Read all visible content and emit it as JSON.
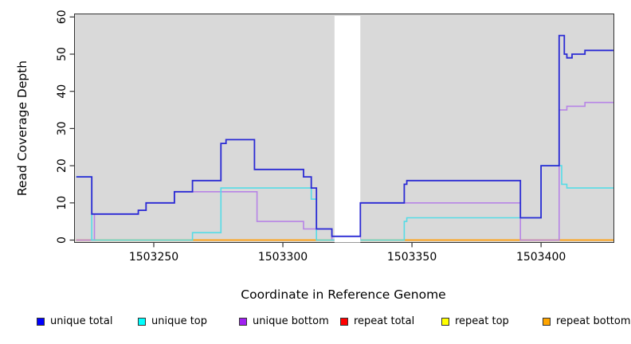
{
  "chart_data": {
    "type": "line",
    "subtype": "step",
    "title": "",
    "xlabel": "Coordinate in Reference Genome",
    "ylabel": "Read Coverage Depth",
    "xlim": [
      1503219,
      1503428
    ],
    "ylim": [
      0,
      60
    ],
    "x_ticks": [
      1503250,
      1503300,
      1503350,
      1503400
    ],
    "y_ticks": [
      0,
      10,
      20,
      30,
      40,
      50,
      60
    ],
    "grid": false,
    "background_color": "#d9d9d9",
    "axis_color": "#333333",
    "masked_region": {
      "x_start": 1503320,
      "x_end": 1503330,
      "color": "#ffffff"
    },
    "series": [
      {
        "name": "repeat total",
        "color": "#ff0000",
        "line_color": "#ff0000",
        "above_mask": false,
        "points": [
          [
            1503220,
            0
          ],
          [
            1503428,
            0
          ]
        ]
      },
      {
        "name": "repeat top",
        "color": "#ffff00",
        "line_color": "#ffff00",
        "above_mask": false,
        "points": [
          [
            1503220,
            0
          ],
          [
            1503428,
            0
          ]
        ]
      },
      {
        "name": "repeat bottom",
        "color": "#ffa500",
        "line_color": "#ff9d14",
        "above_mask": false,
        "points": [
          [
            1503220,
            0
          ],
          [
            1503428,
            0
          ]
        ]
      },
      {
        "name": "unique bottom",
        "color": "#a020f0",
        "line_color": "#b784e6",
        "above_mask": false,
        "points": [
          [
            1503220,
            0
          ],
          [
            1503227,
            7
          ],
          [
            1503244,
            8
          ],
          [
            1503247,
            10
          ],
          [
            1503258,
            13
          ],
          [
            1503290,
            5
          ],
          [
            1503308,
            3
          ],
          [
            1503319,
            0
          ],
          [
            1503330,
            10
          ],
          [
            1503392,
            0
          ],
          [
            1503407,
            35
          ],
          [
            1503410,
            36
          ],
          [
            1503417,
            37
          ],
          [
            1503428,
            37
          ]
        ]
      },
      {
        "name": "unique top",
        "color": "#00ffff",
        "line_color": "#55dce6",
        "above_mask": false,
        "points": [
          [
            1503220,
            17
          ],
          [
            1503226,
            0
          ],
          [
            1503265,
            2
          ],
          [
            1503276,
            14
          ],
          [
            1503311,
            11
          ],
          [
            1503313,
            0
          ],
          [
            1503347,
            5
          ],
          [
            1503348,
            6
          ],
          [
            1503400,
            20
          ],
          [
            1503408,
            15
          ],
          [
            1503410,
            14
          ],
          [
            1503428,
            14
          ]
        ]
      },
      {
        "name": "unique total",
        "color": "#0000ff",
        "line_color": "#2a2ad4",
        "above_mask": true,
        "points": [
          [
            1503220,
            17
          ],
          [
            1503226,
            7
          ],
          [
            1503244,
            8
          ],
          [
            1503247,
            10
          ],
          [
            1503258,
            13
          ],
          [
            1503265,
            16
          ],
          [
            1503276,
            26
          ],
          [
            1503278,
            27
          ],
          [
            1503289,
            19
          ],
          [
            1503308,
            17
          ],
          [
            1503311,
            14
          ],
          [
            1503313,
            3
          ],
          [
            1503319,
            1
          ],
          [
            1503330,
            10
          ],
          [
            1503347,
            15
          ],
          [
            1503348,
            16
          ],
          [
            1503392,
            6
          ],
          [
            1503400,
            20
          ],
          [
            1503407,
            55
          ],
          [
            1503409,
            50
          ],
          [
            1503410,
            49
          ],
          [
            1503412,
            50
          ],
          [
            1503417,
            51
          ],
          [
            1503428,
            51
          ]
        ]
      }
    ]
  },
  "legend": {
    "items": [
      {
        "label": "unique total",
        "color": "#0000ff"
      },
      {
        "label": "unique top",
        "color": "#00ffff"
      },
      {
        "label": "unique bottom",
        "color": "#a020f0"
      },
      {
        "label": "repeat total",
        "color": "#ff0000"
      },
      {
        "label": "repeat top",
        "color": "#ffff00"
      },
      {
        "label": "repeat bottom",
        "color": "#ffa500"
      }
    ]
  }
}
